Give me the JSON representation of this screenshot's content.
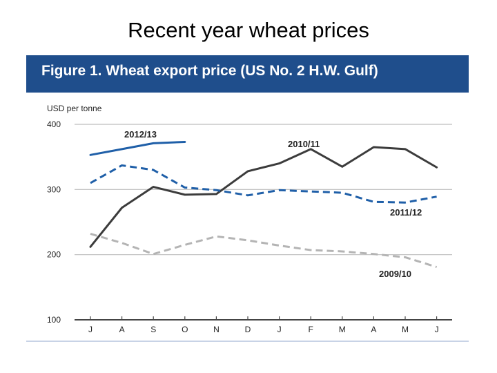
{
  "slide": {
    "title": "Recent year wheat prices"
  },
  "figure": {
    "title": "Figure 1. Wheat export price (US No. 2 H.W. Gulf)"
  },
  "colors": {
    "banner": "#1f4e8c",
    "dark_blue": "#1f5fa8",
    "dark_grey": "#3c3c3c",
    "light_grey": "#b4b4b4"
  },
  "chart_data": {
    "type": "line",
    "title": "Figure 1. Wheat export price (US No. 2 H.W. Gulf)",
    "ylabel": "USD per tonne",
    "xlabel": "",
    "ylim": [
      100,
      400
    ],
    "yticks": [
      100,
      200,
      300,
      400
    ],
    "grid": true,
    "categories": [
      "J",
      "A",
      "S",
      "O",
      "N",
      "D",
      "J",
      "F",
      "M",
      "A",
      "M",
      "J"
    ],
    "series": [
      {
        "name": "2012/13",
        "color": "#1f5fa8",
        "style": "solid",
        "values": [
          353,
          362,
          371,
          373,
          null,
          null,
          null,
          null,
          null,
          null,
          null,
          null
        ]
      },
      {
        "name": "2010/11",
        "color": "#3c3c3c",
        "style": "solid",
        "values": [
          212,
          272,
          304,
          292,
          293,
          328,
          340,
          362,
          335,
          365,
          362,
          334
        ]
      },
      {
        "name": "2011/12",
        "color": "#1f5fa8",
        "style": "dashed",
        "values": [
          310,
          337,
          330,
          303,
          299,
          291,
          299,
          297,
          295,
          281,
          280,
          289
        ]
      },
      {
        "name": "2009/10",
        "color": "#b4b4b4",
        "style": "dashed",
        "values": [
          232,
          218,
          201,
          215,
          228,
          222,
          214,
          207,
          205,
          201,
          196,
          181
        ]
      }
    ]
  }
}
